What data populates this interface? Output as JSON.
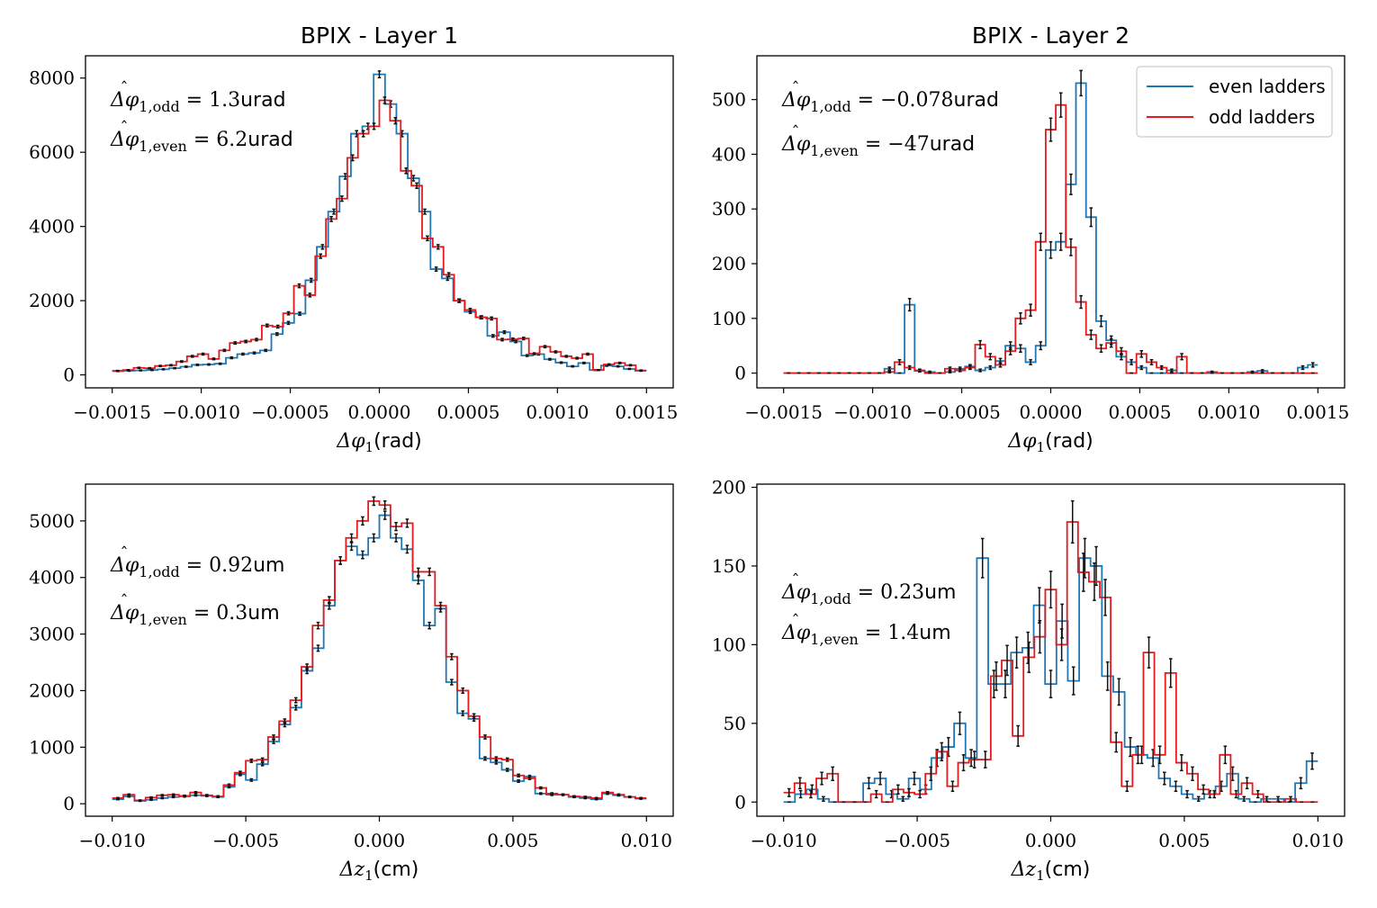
{
  "figure": {
    "legend": [
      {
        "label": "even ladders",
        "color": "#1f77b4"
      },
      {
        "label": "odd ladders",
        "color": "#e41a1c"
      }
    ],
    "errorbar_color": "#111111"
  },
  "chart_data": [
    {
      "type": "histogram-step",
      "title": "BPIX - Layer 1",
      "xlabel_math": "Δφ",
      "xlabel_sub": "1",
      "xlabel_unit": "(rad)",
      "xlim": [
        -0.00165,
        0.00165
      ],
      "ylim": [
        -350,
        8600
      ],
      "xticks": [
        -0.0015,
        -0.001,
        -0.0005,
        0,
        0.0005,
        0.001,
        0.0015
      ],
      "xtick_labels": [
        "−0.0015",
        "−0.0010",
        "−0.0005",
        "0.0000",
        "0.0005",
        "0.0010",
        "0.0015"
      ],
      "yticks": [
        0,
        2000,
        4000,
        6000,
        8000
      ],
      "ytick_labels": [
        "0",
        "2000",
        "4000",
        "6000",
        "8000"
      ],
      "annotations": [
        {
          "base": "Δφ",
          "sub": "1,odd",
          "eq": " = 1.3",
          "unit": "urad"
        },
        {
          "base": "Δφ",
          "sub": "1,even",
          "eq": " = 6.2",
          "unit": "urad"
        }
      ],
      "legend": false,
      "bin_edges_range": [
        -0.0015,
        0.0015
      ],
      "series": [
        {
          "name": "even ladders",
          "values": [
            100,
            110,
            120,
            130,
            150,
            180,
            220,
            270,
            280,
            300,
            460,
            560,
            590,
            660,
            1100,
            1400,
            1650,
            2550,
            3450,
            4400,
            5350,
            6500,
            6700,
            8100,
            7300,
            6500,
            5300,
            4400,
            2850,
            2600,
            2000,
            1700,
            1550,
            1050,
            1150,
            900,
            520,
            560,
            420,
            330,
            230,
            320,
            130,
            250,
            230,
            160,
            110
          ]
        },
        {
          "name": "odd ladders",
          "values": [
            110,
            130,
            190,
            180,
            240,
            260,
            360,
            500,
            560,
            430,
            660,
            860,
            900,
            950,
            1330,
            1300,
            1660,
            2400,
            2150,
            3200,
            4200,
            4750,
            5850,
            6500,
            6700,
            7400,
            6850,
            5500,
            5100,
            3680,
            3450,
            2700,
            2000,
            1750,
            1550,
            1520,
            950,
            960,
            980,
            570,
            760,
            620,
            500,
            450,
            560,
            130,
            280,
            320,
            260,
            120
          ]
        }
      ]
    },
    {
      "type": "histogram-step",
      "title": "BPIX - Layer 2",
      "xlabel_math": "Δφ",
      "xlabel_sub": "1",
      "xlabel_unit": "(rad)",
      "xlim": [
        -0.00165,
        0.00165
      ],
      "ylim": [
        -27,
        580
      ],
      "xticks": [
        -0.0015,
        -0.001,
        -0.0005,
        0,
        0.0005,
        0.001,
        0.0015
      ],
      "xtick_labels": [
        "−0.0015",
        "−0.0010",
        "−0.0005",
        "0.0000",
        "0.0005",
        "0.0010",
        "0.0015"
      ],
      "yticks": [
        0,
        100,
        200,
        300,
        400,
        500
      ],
      "ytick_labels": [
        "0",
        "100",
        "200",
        "300",
        "400",
        "500"
      ],
      "annotations": [
        {
          "base": "Δφ",
          "sub": "1,odd",
          "eq": " = −0.078",
          "unit": "urad"
        },
        {
          "base": "Δφ",
          "sub": "1,even",
          "eq": " = −47",
          "unit": "urad"
        }
      ],
      "legend": true,
      "bin_edges_range": [
        -0.0015,
        0.0015
      ],
      "series": [
        {
          "name": "even ladders",
          "values": [
            0,
            0,
            0,
            0,
            0,
            0,
            0,
            0,
            0,
            0,
            8,
            0,
            125,
            4,
            2,
            0,
            2,
            8,
            12,
            5,
            10,
            22,
            50,
            45,
            20,
            50,
            225,
            240,
            345,
            530,
            285,
            95,
            60,
            30,
            20,
            10,
            0,
            0,
            5,
            0,
            0,
            0,
            0,
            0,
            0,
            0,
            2,
            4,
            0,
            0,
            0,
            10,
            15
          ]
        },
        {
          "name": "odd ladders",
          "values": [
            0,
            0,
            0,
            0,
            0,
            0,
            0,
            0,
            0,
            0,
            2,
            20,
            10,
            5,
            0,
            0,
            8,
            5,
            10,
            52,
            30,
            15,
            40,
            100,
            115,
            240,
            445,
            490,
            230,
            130,
            70,
            45,
            55,
            40,
            0,
            35,
            20,
            10,
            0,
            30,
            0,
            0,
            2,
            0,
            0,
            0,
            0,
            0,
            0,
            0,
            0,
            0,
            0
          ]
        }
      ]
    },
    {
      "type": "histogram-step",
      "title": "",
      "xlabel_math": "Δz",
      "xlabel_sub": "1",
      "xlabel_unit": "(cm)",
      "xlim": [
        -0.011,
        0.011
      ],
      "ylim": [
        -220,
        5650
      ],
      "xticks": [
        -0.01,
        -0.005,
        0,
        0.005,
        0.01
      ],
      "xtick_labels": [
        "−0.010",
        "−0.005",
        "0.000",
        "0.005",
        "0.010"
      ],
      "yticks": [
        0,
        1000,
        2000,
        3000,
        4000,
        5000
      ],
      "ytick_labels": [
        "0",
        "1000",
        "2000",
        "3000",
        "4000",
        "5000"
      ],
      "annotations": [
        {
          "base": "Δφ",
          "sub": "1,odd",
          "eq": " = 0.92",
          "unit": "um"
        },
        {
          "base": "Δφ",
          "sub": "1,even",
          "eq": " = 0.3",
          "unit": "um"
        }
      ],
      "legend": false,
      "bin_edges_range": [
        -0.01,
        0.01
      ],
      "series": [
        {
          "name": "even ladders",
          "values": [
            80,
            130,
            50,
            70,
            100,
            120,
            130,
            150,
            140,
            120,
            300,
            520,
            420,
            700,
            1100,
            1400,
            1700,
            2350,
            2750,
            3500,
            4300,
            4550,
            4400,
            4700,
            5100,
            4700,
            4500,
            3950,
            3150,
            3450,
            2150,
            1600,
            1500,
            800,
            730,
            600,
            400,
            480,
            180,
            160,
            160,
            120,
            100,
            80,
            180,
            150,
            120,
            90
          ]
        },
        {
          "name": "odd ladders",
          "values": [
            100,
            160,
            60,
            110,
            150,
            160,
            140,
            200,
            150,
            130,
            330,
            550,
            760,
            780,
            1180,
            1460,
            1830,
            2420,
            3150,
            3600,
            4300,
            4700,
            5000,
            5350,
            5280,
            4900,
            4960,
            4100,
            4100,
            3500,
            2600,
            2000,
            1550,
            1180,
            800,
            780,
            500,
            450,
            280,
            180,
            160,
            130,
            120,
            100,
            200,
            160,
            120,
            100
          ]
        }
      ]
    },
    {
      "type": "histogram-step",
      "title": "",
      "xlabel_math": "Δz",
      "xlabel_sub": "1",
      "xlabel_unit": "(cm)",
      "xlim": [
        -0.011,
        0.011
      ],
      "ylim": [
        -9,
        202
      ],
      "xticks": [
        -0.01,
        -0.005,
        0,
        0.005,
        0.01
      ],
      "xtick_labels": [
        "−0.010",
        "−0.005",
        "0.000",
        "0.005",
        "0.010"
      ],
      "yticks": [
        0,
        50,
        100,
        150,
        200
      ],
      "ytick_labels": [
        "0",
        "50",
        "100",
        "150",
        "200"
      ],
      "annotations": [
        {
          "base": "Δφ",
          "sub": "1,odd",
          "eq": " = 0.23",
          "unit": "um"
        },
        {
          "base": "Δφ",
          "sub": "1,even",
          "eq": " = 1.4",
          "unit": "um"
        }
      ],
      "legend": false,
      "bin_edges_range": [
        -0.01,
        0.01
      ],
      "series": [
        {
          "name": "even ladders",
          "values": [
            0,
            5,
            8,
            2,
            0,
            0,
            0,
            12,
            15,
            5,
            2,
            15,
            8,
            28,
            35,
            50,
            28,
            155,
            75,
            75,
            95,
            98,
            125,
            75,
            115,
            77,
            155,
            150,
            80,
            70,
            35,
            30,
            28,
            15,
            10,
            5,
            2,
            5,
            10,
            18,
            2,
            0,
            2,
            2,
            0,
            12,
            26
          ]
        },
        {
          "name": "odd ladders",
          "values": [
            6,
            12,
            5,
            15,
            18,
            0,
            0,
            0,
            5,
            0,
            8,
            6,
            5,
            18,
            32,
            10,
            25,
            27,
            27,
            80,
            90,
            42,
            92,
            105,
            135,
            100,
            178,
            146,
            140,
            130,
            38,
            10,
            30,
            95,
            30,
            82,
            25,
            18,
            8,
            5,
            30,
            5,
            12,
            5,
            0,
            0,
            2,
            0,
            0
          ]
        }
      ]
    }
  ]
}
